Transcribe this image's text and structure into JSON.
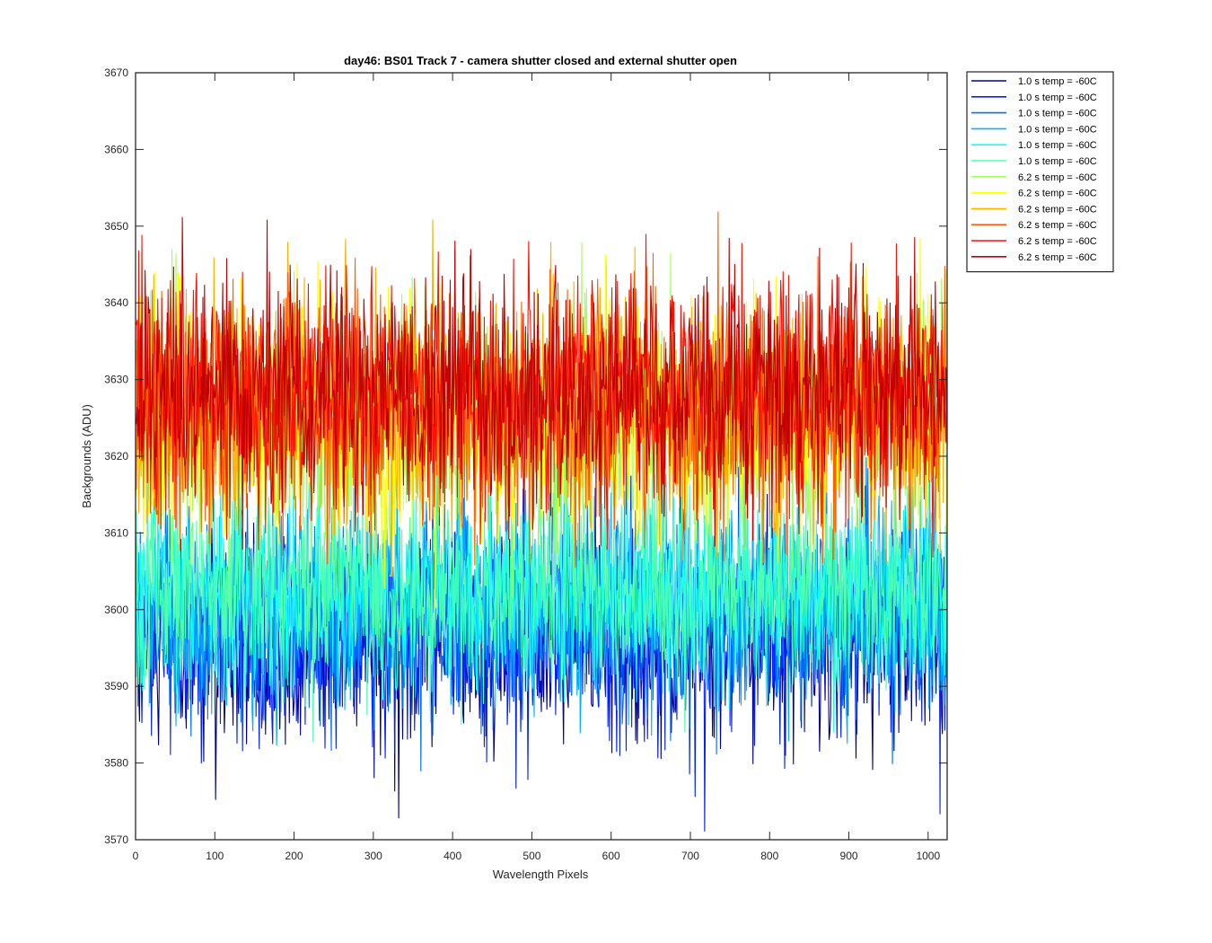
{
  "chart_data": {
    "type": "line",
    "title": "day46: BS01  Track 7 - camera shutter closed and external shutter open",
    "xlabel": "Wavelength Pixels",
    "ylabel": "Backgrounds (ADU)",
    "xlim": [
      0,
      1024
    ],
    "ylim": [
      3570,
      3670
    ],
    "xticks": [
      0,
      100,
      200,
      300,
      400,
      500,
      600,
      700,
      800,
      900,
      1000
    ],
    "yticks": [
      3570,
      3580,
      3590,
      3600,
      3610,
      3620,
      3630,
      3640,
      3650,
      3660,
      3670
    ],
    "grid": false,
    "legend_position": "outside-top-right",
    "n_points": 1024,
    "series": [
      {
        "name": "1.0 s temp = -60C",
        "color": "#00008F",
        "mean": 3596,
        "spread": 6.5
      },
      {
        "name": "1.0 s temp = -60C",
        "color": "#0020FF",
        "mean": 3597,
        "spread": 6.5
      },
      {
        "name": "1.0 s temp = -60C",
        "color": "#0070FF",
        "mean": 3600,
        "spread": 6.5
      },
      {
        "name": "1.0 s temp = -60C",
        "color": "#00AFFF",
        "mean": 3601,
        "spread": 6.5
      },
      {
        "name": "1.0 s temp = -60C",
        "color": "#10FFEF",
        "mean": 3602,
        "spread": 6.5
      },
      {
        "name": "1.0 s temp = -60C",
        "color": "#50FFAF",
        "mean": 3603,
        "spread": 6.5
      },
      {
        "name": "6.2 s temp = -60C",
        "color": "#A0FF60",
        "mean": 3624,
        "spread": 7.5
      },
      {
        "name": "6.2 s temp = -60C",
        "color": "#FFFF00",
        "mean": 3625,
        "spread": 7.5
      },
      {
        "name": "6.2 s temp = -60C",
        "color": "#FFAF00",
        "mean": 3626,
        "spread": 7.5
      },
      {
        "name": "6.2 s temp = -60C",
        "color": "#FF6000",
        "mean": 3627,
        "spread": 7.5
      },
      {
        "name": "6.2 s temp = -60C",
        "color": "#FF1000",
        "mean": 3628,
        "spread": 7.5
      },
      {
        "name": "6.2 s temp = -60C",
        "color": "#BF0000",
        "mean": 3629,
        "spread": 7.5
      }
    ]
  }
}
